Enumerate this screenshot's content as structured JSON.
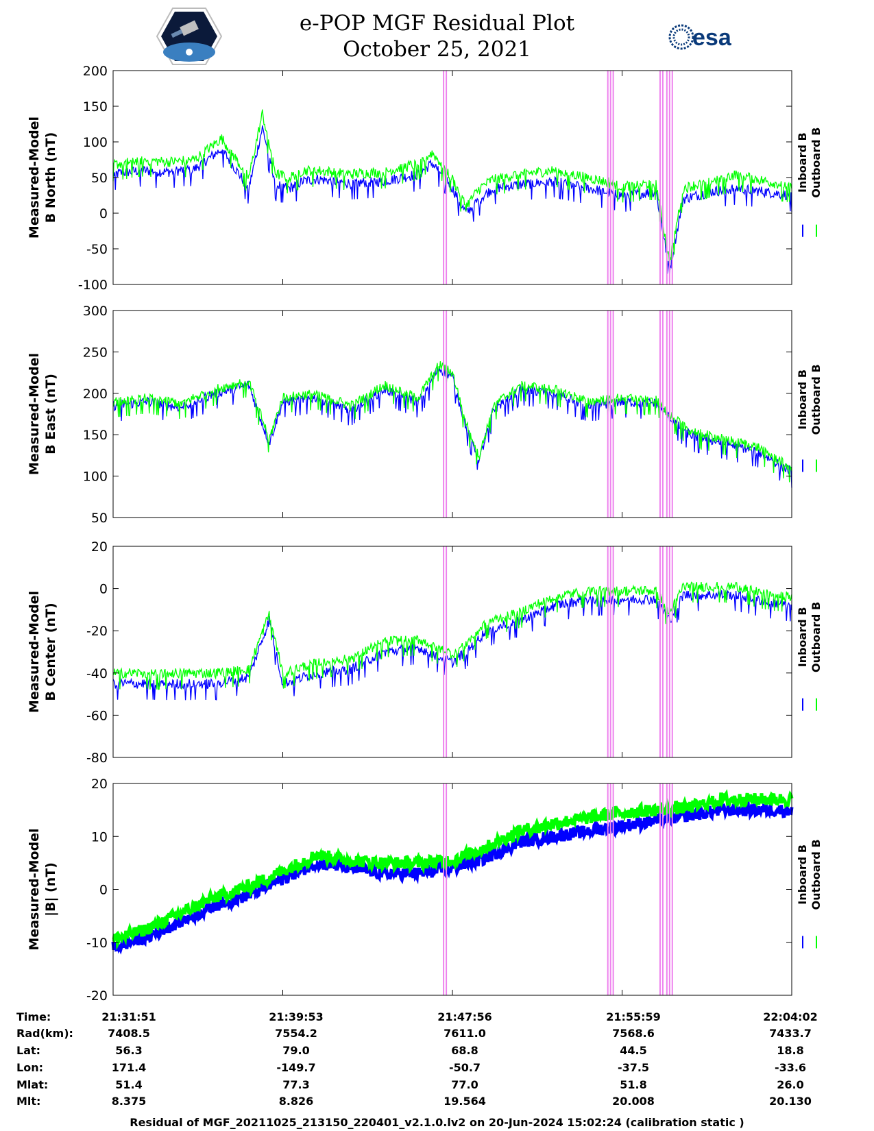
{
  "header": {
    "title_line1": "e-POP MGF Residual Plot",
    "title_line2": "October 25, 2021",
    "logo_left_name": "cassiope-mission-logo",
    "logo_right_text": "esa"
  },
  "colors": {
    "inboard": "#0000ff",
    "outboard": "#00ff00",
    "marker": "#ee82ee"
  },
  "chart_data": [
    {
      "type": "line",
      "ylabel_line1": "Measured-Model",
      "ylabel_line2": "B North (nT)",
      "ylim": [
        -100,
        200
      ],
      "yticks": [
        -100,
        -50,
        0,
        50,
        100,
        150,
        200
      ],
      "legend": [
        "Inboard B",
        "Outboard B"
      ],
      "series": [
        {
          "name": "Inboard B",
          "x": [
            0,
            0.04,
            0.08,
            0.12,
            0.16,
            0.2,
            0.22,
            0.24,
            0.26,
            0.28,
            0.3,
            0.35,
            0.4,
            0.45,
            0.47,
            0.49,
            0.5,
            0.52,
            0.54,
            0.56,
            0.6,
            0.65,
            0.7,
            0.75,
            0.8,
            0.82,
            0.84,
            0.88,
            0.92,
            0.96,
            1.0
          ],
          "values": [
            55,
            60,
            58,
            62,
            90,
            35,
            120,
            40,
            35,
            45,
            48,
            42,
            45,
            55,
            70,
            50,
            35,
            0,
            20,
            35,
            40,
            45,
            35,
            25,
            30,
            -80,
            20,
            30,
            35,
            30,
            25
          ]
        },
        {
          "name": "Outboard B",
          "x": [
            0,
            0.04,
            0.08,
            0.12,
            0.16,
            0.2,
            0.22,
            0.24,
            0.26,
            0.28,
            0.3,
            0.35,
            0.4,
            0.45,
            0.47,
            0.49,
            0.5,
            0.52,
            0.54,
            0.56,
            0.6,
            0.65,
            0.7,
            0.75,
            0.8,
            0.82,
            0.84,
            0.88,
            0.92,
            0.96,
            1.0
          ],
          "values": [
            68,
            75,
            72,
            75,
            105,
            50,
            140,
            55,
            50,
            60,
            60,
            55,
            58,
            70,
            85,
            62,
            48,
            10,
            35,
            48,
            55,
            60,
            50,
            38,
            42,
            -70,
            35,
            45,
            55,
            45,
            38
          ]
        }
      ]
    },
    {
      "type": "line",
      "ylabel_line1": "Measured-Model",
      "ylabel_line2": "B East (nT)",
      "ylim": [
        50,
        300
      ],
      "yticks": [
        50,
        100,
        150,
        200,
        250,
        300
      ],
      "legend": [
        "Inboard B",
        "Outboard B"
      ],
      "series": [
        {
          "name": "Inboard B",
          "x": [
            0,
            0.05,
            0.1,
            0.15,
            0.2,
            0.23,
            0.25,
            0.3,
            0.35,
            0.4,
            0.45,
            0.48,
            0.5,
            0.52,
            0.54,
            0.56,
            0.6,
            0.65,
            0.7,
            0.75,
            0.8,
            0.82,
            0.85,
            0.9,
            0.95,
            1.0
          ],
          "values": [
            185,
            190,
            183,
            200,
            210,
            140,
            190,
            195,
            180,
            205,
            190,
            230,
            220,
            160,
            120,
            180,
            205,
            200,
            185,
            190,
            188,
            170,
            150,
            140,
            130,
            105
          ]
        },
        {
          "name": "Outboard B",
          "x": [
            0,
            0.05,
            0.1,
            0.15,
            0.2,
            0.23,
            0.25,
            0.3,
            0.35,
            0.4,
            0.45,
            0.48,
            0.5,
            0.52,
            0.54,
            0.56,
            0.6,
            0.65,
            0.7,
            0.75,
            0.8,
            0.82,
            0.85,
            0.9,
            0.95,
            1.0
          ],
          "values": [
            190,
            195,
            188,
            205,
            215,
            145,
            195,
            200,
            185,
            210,
            195,
            235,
            225,
            165,
            125,
            185,
            210,
            205,
            190,
            195,
            193,
            175,
            155,
            145,
            135,
            110
          ]
        }
      ]
    },
    {
      "type": "line",
      "ylabel_line1": "Measured-Model",
      "ylabel_line2": "B Center (nT)",
      "ylim": [
        -80,
        20
      ],
      "yticks": [
        -80,
        -60,
        -40,
        -20,
        0,
        20
      ],
      "legend": [
        "Inboard B",
        "Outboard B"
      ],
      "series": [
        {
          "name": "Inboard B",
          "x": [
            0,
            0.05,
            0.1,
            0.15,
            0.2,
            0.23,
            0.25,
            0.3,
            0.35,
            0.4,
            0.45,
            0.5,
            0.52,
            0.55,
            0.6,
            0.65,
            0.7,
            0.75,
            0.8,
            0.82,
            0.84,
            0.88,
            0.92,
            0.96,
            1.0
          ],
          "values": [
            -45,
            -45,
            -45,
            -45,
            -42,
            -15,
            -45,
            -40,
            -38,
            -30,
            -28,
            -35,
            -30,
            -20,
            -15,
            -8,
            -5,
            -5,
            -5,
            -15,
            -3,
            -3,
            -3,
            -6,
            -8
          ]
        },
        {
          "name": "Outboard B",
          "x": [
            0,
            0.05,
            0.1,
            0.15,
            0.2,
            0.23,
            0.25,
            0.3,
            0.35,
            0.4,
            0.45,
            0.5,
            0.52,
            0.55,
            0.6,
            0.65,
            0.7,
            0.75,
            0.8,
            0.82,
            0.84,
            0.88,
            0.92,
            0.96,
            1.0
          ],
          "values": [
            -40,
            -40,
            -40,
            -40,
            -38,
            -12,
            -40,
            -35,
            -33,
            -25,
            -24,
            -31,
            -26,
            -16,
            -11,
            -4,
            -1,
            -1,
            -1,
            -12,
            1,
            1,
            1,
            -2,
            -4
          ]
        }
      ]
    },
    {
      "type": "line",
      "ylabel_line1": "Measured-Model",
      "ylabel_line2": "|B| (nT)",
      "ylim": [
        -20,
        20
      ],
      "yticks": [
        -20,
        -10,
        0,
        10,
        20
      ],
      "legend": [
        "Inboard B",
        "Outboard B"
      ],
      "series": [
        {
          "name": "Inboard B",
          "x": [
            0,
            0.05,
            0.1,
            0.15,
            0.2,
            0.25,
            0.3,
            0.35,
            0.4,
            0.45,
            0.5,
            0.55,
            0.6,
            0.65,
            0.7,
            0.75,
            0.8,
            0.85,
            0.9,
            0.95,
            1.0
          ],
          "values": [
            -11,
            -9,
            -6,
            -3,
            -1,
            2,
            5,
            4,
            3,
            3,
            4,
            6,
            9,
            10,
            11,
            12,
            13,
            14,
            15,
            15,
            15
          ]
        },
        {
          "name": "Outboard B",
          "x": [
            0,
            0.05,
            0.1,
            0.15,
            0.2,
            0.25,
            0.3,
            0.35,
            0.4,
            0.45,
            0.5,
            0.55,
            0.6,
            0.65,
            0.7,
            0.75,
            0.8,
            0.85,
            0.9,
            0.95,
            1.0
          ],
          "values": [
            -9.5,
            -7.5,
            -4.5,
            -1.5,
            0.5,
            3.5,
            6.5,
            5.5,
            5,
            5,
            5.5,
            8,
            11,
            12.5,
            13.5,
            14.5,
            15,
            15.5,
            17,
            17,
            17
          ]
        }
      ]
    }
  ],
  "marker_lines_x": [
    0.487,
    0.491,
    0.729,
    0.733,
    0.737,
    0.806,
    0.81,
    0.816,
    0.82,
    0.824
  ],
  "xticks_x": [
    0,
    0.25,
    0.5,
    0.75,
    1.0
  ],
  "table": {
    "row_labels": [
      "Time:",
      "Rad(km):",
      "Lat:",
      "Lon:",
      "Mlat:",
      "Mlt:"
    ],
    "columns": [
      [
        "21:31:51",
        "7408.5",
        "56.3",
        "171.4",
        "51.4",
        "8.375"
      ],
      [
        "21:39:53",
        "7554.2",
        "79.0",
        "-149.7",
        "77.3",
        "8.826"
      ],
      [
        "21:47:56",
        "7611.0",
        "68.8",
        "-50.7",
        "77.0",
        "19.564"
      ],
      [
        "21:55:59",
        "7568.6",
        "44.5",
        "-37.5",
        "51.8",
        "20.008"
      ],
      [
        "22:04:02",
        "7433.7",
        "18.8",
        "-33.6",
        "26.0",
        "20.130"
      ]
    ]
  },
  "footer": "Residual of MGF_20211025_213150_220401_v2.1.0.lv2 on 20-Jun-2024 15:02:24 (calibration static )"
}
